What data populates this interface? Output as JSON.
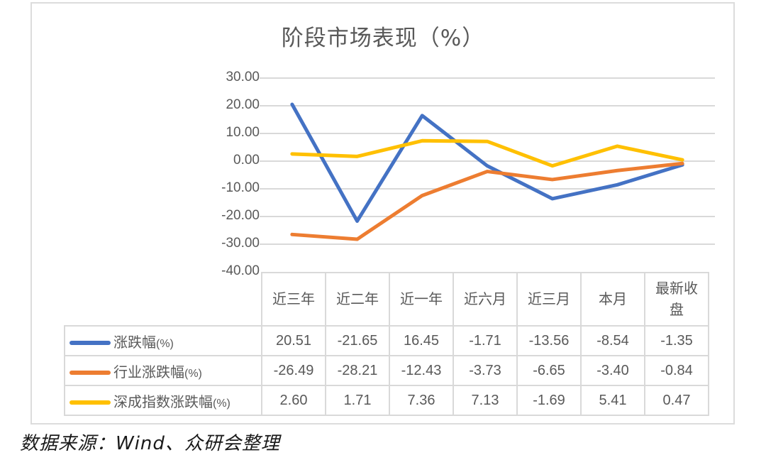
{
  "chart_data": {
    "type": "line",
    "title": "阶段市场表现（%）",
    "xlabel": "",
    "ylabel": "",
    "ylim": [
      -40,
      30
    ],
    "yticks": [
      "30.00",
      "20.00",
      "10.00",
      "0.00",
      "-10.00",
      "-20.00",
      "-30.00",
      "-40.00"
    ],
    "grid": true,
    "legend_position": "data-table",
    "categories": [
      "近三年",
      "近二年",
      "近一年",
      "近六月",
      "近三月",
      "本月",
      "最新收盘"
    ],
    "series": [
      {
        "name": "涨跌幅(%)",
        "color": "#4472C4",
        "values": [
          20.51,
          -21.65,
          16.45,
          -1.71,
          -13.56,
          -8.54,
          -1.35
        ],
        "display": [
          "20.51",
          "-21.65",
          "16.45",
          "-1.71",
          "-13.56",
          "-8.54",
          "-1.35"
        ]
      },
      {
        "name": "行业涨跌幅(%)",
        "color": "#ED7D31",
        "values": [
          -26.49,
          -28.21,
          -12.43,
          -3.73,
          -6.65,
          -3.4,
          -0.84
        ],
        "display": [
          "-26.49",
          "-28.21",
          "-12.43",
          "-3.73",
          "-6.65",
          "-3.40",
          "-0.84"
        ]
      },
      {
        "name": "深成指数涨跌幅(%)",
        "color": "#FFC000",
        "values": [
          2.6,
          1.71,
          7.36,
          7.13,
          -1.69,
          5.41,
          0.47
        ],
        "display": [
          "2.60",
          "1.71",
          "7.36",
          "7.13",
          "-1.69",
          "5.41",
          "0.47"
        ]
      }
    ]
  },
  "header_lines": [
    [
      "近三年"
    ],
    [
      "近二年"
    ],
    [
      "近一年"
    ],
    [
      "近六月"
    ],
    [
      "近三月"
    ],
    [
      "本月"
    ],
    [
      "最新收",
      "盘"
    ]
  ],
  "series_labels": [
    {
      "main": "涨跌幅",
      "unit": "(%)"
    },
    {
      "main": "行业涨跌幅",
      "unit": "(%)"
    },
    {
      "main": "深成指数涨跌幅",
      "unit": "(%)"
    }
  ],
  "source": "数据来源：Wind、众研会整理"
}
